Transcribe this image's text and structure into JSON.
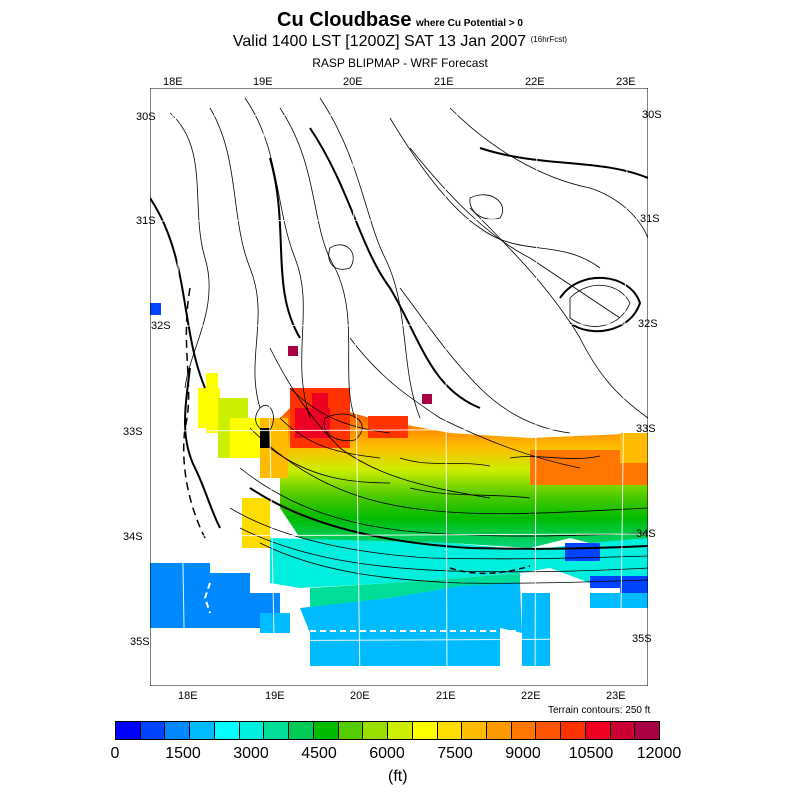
{
  "title": {
    "main": "Cu Cloudbase",
    "condition": "where Cu Potential > 0",
    "valid": "Valid 1400 LST [1200Z] SAT 13 Jan 2007",
    "forecast": "(16hrFcst)",
    "subtitle": "RASP BLIPMAP - WRF Forecast"
  },
  "map": {
    "lon_top": [
      "18E",
      "19E",
      "20E",
      "21E",
      "22E",
      "23E"
    ],
    "lon_bottom": [
      "18E",
      "19E",
      "20E",
      "21E",
      "22E",
      "23E"
    ],
    "lat_left": [
      "30S",
      "31S",
      "32S",
      "33S",
      "34S",
      "35S"
    ],
    "lat_right": [
      "30S",
      "31S",
      "32S",
      "33S",
      "34S",
      "35S"
    ],
    "terrain_note": "Terrain contours: 250 ft"
  },
  "colorbar": {
    "colors": [
      "#0000ff",
      "#0044ff",
      "#0088ff",
      "#00bbff",
      "#00ffff",
      "#00eedd",
      "#00dd99",
      "#00cc55",
      "#00bb00",
      "#55cc00",
      "#99dd00",
      "#ccee00",
      "#ffff00",
      "#ffdd00",
      "#ffbb00",
      "#ff9900",
      "#ff7700",
      "#ff5500",
      "#ff3300",
      "#ee0022",
      "#cc0033",
      "#aa0044"
    ],
    "ticks": [
      "0",
      "1500",
      "3000",
      "4500",
      "6000",
      "7500",
      "9000",
      "10500",
      "12000"
    ],
    "unit": "(ft)"
  }
}
